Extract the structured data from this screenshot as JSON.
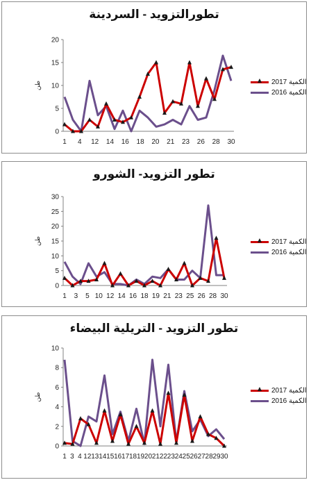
{
  "colors": {
    "s2017": "#cc0000",
    "s2016": "#6b4f8c",
    "marker": "#1a1a1a",
    "axis": "#808080"
  },
  "chart_data": [
    {
      "type": "line",
      "title": "تطورالتزويد - السردينة",
      "ylabel": "طن",
      "ylim": [
        0,
        20
      ],
      "yticks": [
        0,
        5,
        10,
        15,
        20
      ],
      "xtick_labels": [
        "1",
        "4",
        "12",
        "14",
        "16",
        "18",
        "20",
        "21",
        "23",
        "26",
        "28",
        "30"
      ],
      "legend_placement": "right",
      "series": [
        {
          "name": "الكمية 2017",
          "values": [
            1.5,
            0,
            0,
            2.5,
            1,
            6,
            2.5,
            2,
            3,
            7.5,
            12.5,
            15,
            4,
            6.5,
            6,
            15,
            5.5,
            11.5,
            7,
            13.5,
            14
          ]
        },
        {
          "name": "الكمية 2016",
          "values": [
            7.5,
            2.5,
            0,
            11,
            3.5,
            5.5,
            0.5,
            4.5,
            0,
            4.5,
            3,
            1,
            1.5,
            2.5,
            1.5,
            5.5,
            2.5,
            3,
            9,
            16.5,
            11
          ]
        }
      ]
    },
    {
      "type": "line",
      "title": "تطور التزويد- الشورو",
      "ylabel": "طن",
      "ylim": [
        0,
        30
      ],
      "yticks": [
        0,
        5,
        10,
        15,
        20,
        25,
        30
      ],
      "xtick_labels": [
        "1",
        "3",
        "5",
        "10",
        "12",
        "14",
        "16",
        "18",
        "19",
        "21",
        "23",
        "25",
        "26",
        "28",
        "30"
      ],
      "legend_placement": "right",
      "series": [
        {
          "name": "الكمية 2017",
          "values": [
            2.5,
            0,
            1.5,
            1.5,
            2,
            7.5,
            0,
            4,
            0,
            1.5,
            0,
            1.5,
            0,
            5.5,
            2,
            7.5,
            0,
            2.5,
            1.5,
            16,
            2.5
          ]
        },
        {
          "name": "الكمية 2016",
          "values": [
            8,
            3,
            0.5,
            7.5,
            3,
            4.5,
            0.5,
            0.5,
            0,
            2,
            0.5,
            3,
            2.5,
            5.5,
            2,
            2,
            5,
            2.5,
            27,
            3.5,
            3.5
          ]
        }
      ]
    },
    {
      "type": "line",
      "title": "تطور التزويد - التريلية البيضاء",
      "ylabel": "طن",
      "ylim": [
        0,
        10
      ],
      "yticks": [
        0,
        2,
        4,
        6,
        8,
        10
      ],
      "xtick_labels": [
        "1",
        "3",
        "4",
        "12",
        "13",
        "14",
        "15",
        "16",
        "17",
        "18",
        "19",
        "20",
        "21",
        "22",
        "23",
        "24",
        "25",
        "26",
        "27",
        "28",
        "29",
        "30"
      ],
      "legend_placement": "right",
      "series": [
        {
          "name": "الكمية 2017",
          "values": [
            0.3,
            0.2,
            2.8,
            2.2,
            0.3,
            3.6,
            0.5,
            3.2,
            0.2,
            2.0,
            0.3,
            3.6,
            0.2,
            5.4,
            0.3,
            5.2,
            0.5,
            3.0,
            1.2,
            0.8,
            0
          ]
        },
        {
          "name": "الكمية 2016",
          "values": [
            8.8,
            0.5,
            0,
            3.0,
            2.5,
            7.2,
            1.2,
            3.5,
            0.5,
            3.8,
            0.2,
            8.8,
            2.0,
            8.3,
            0.4,
            5.6,
            1.5,
            2.7,
            1.0,
            1.7,
            0.7
          ]
        }
      ]
    }
  ]
}
